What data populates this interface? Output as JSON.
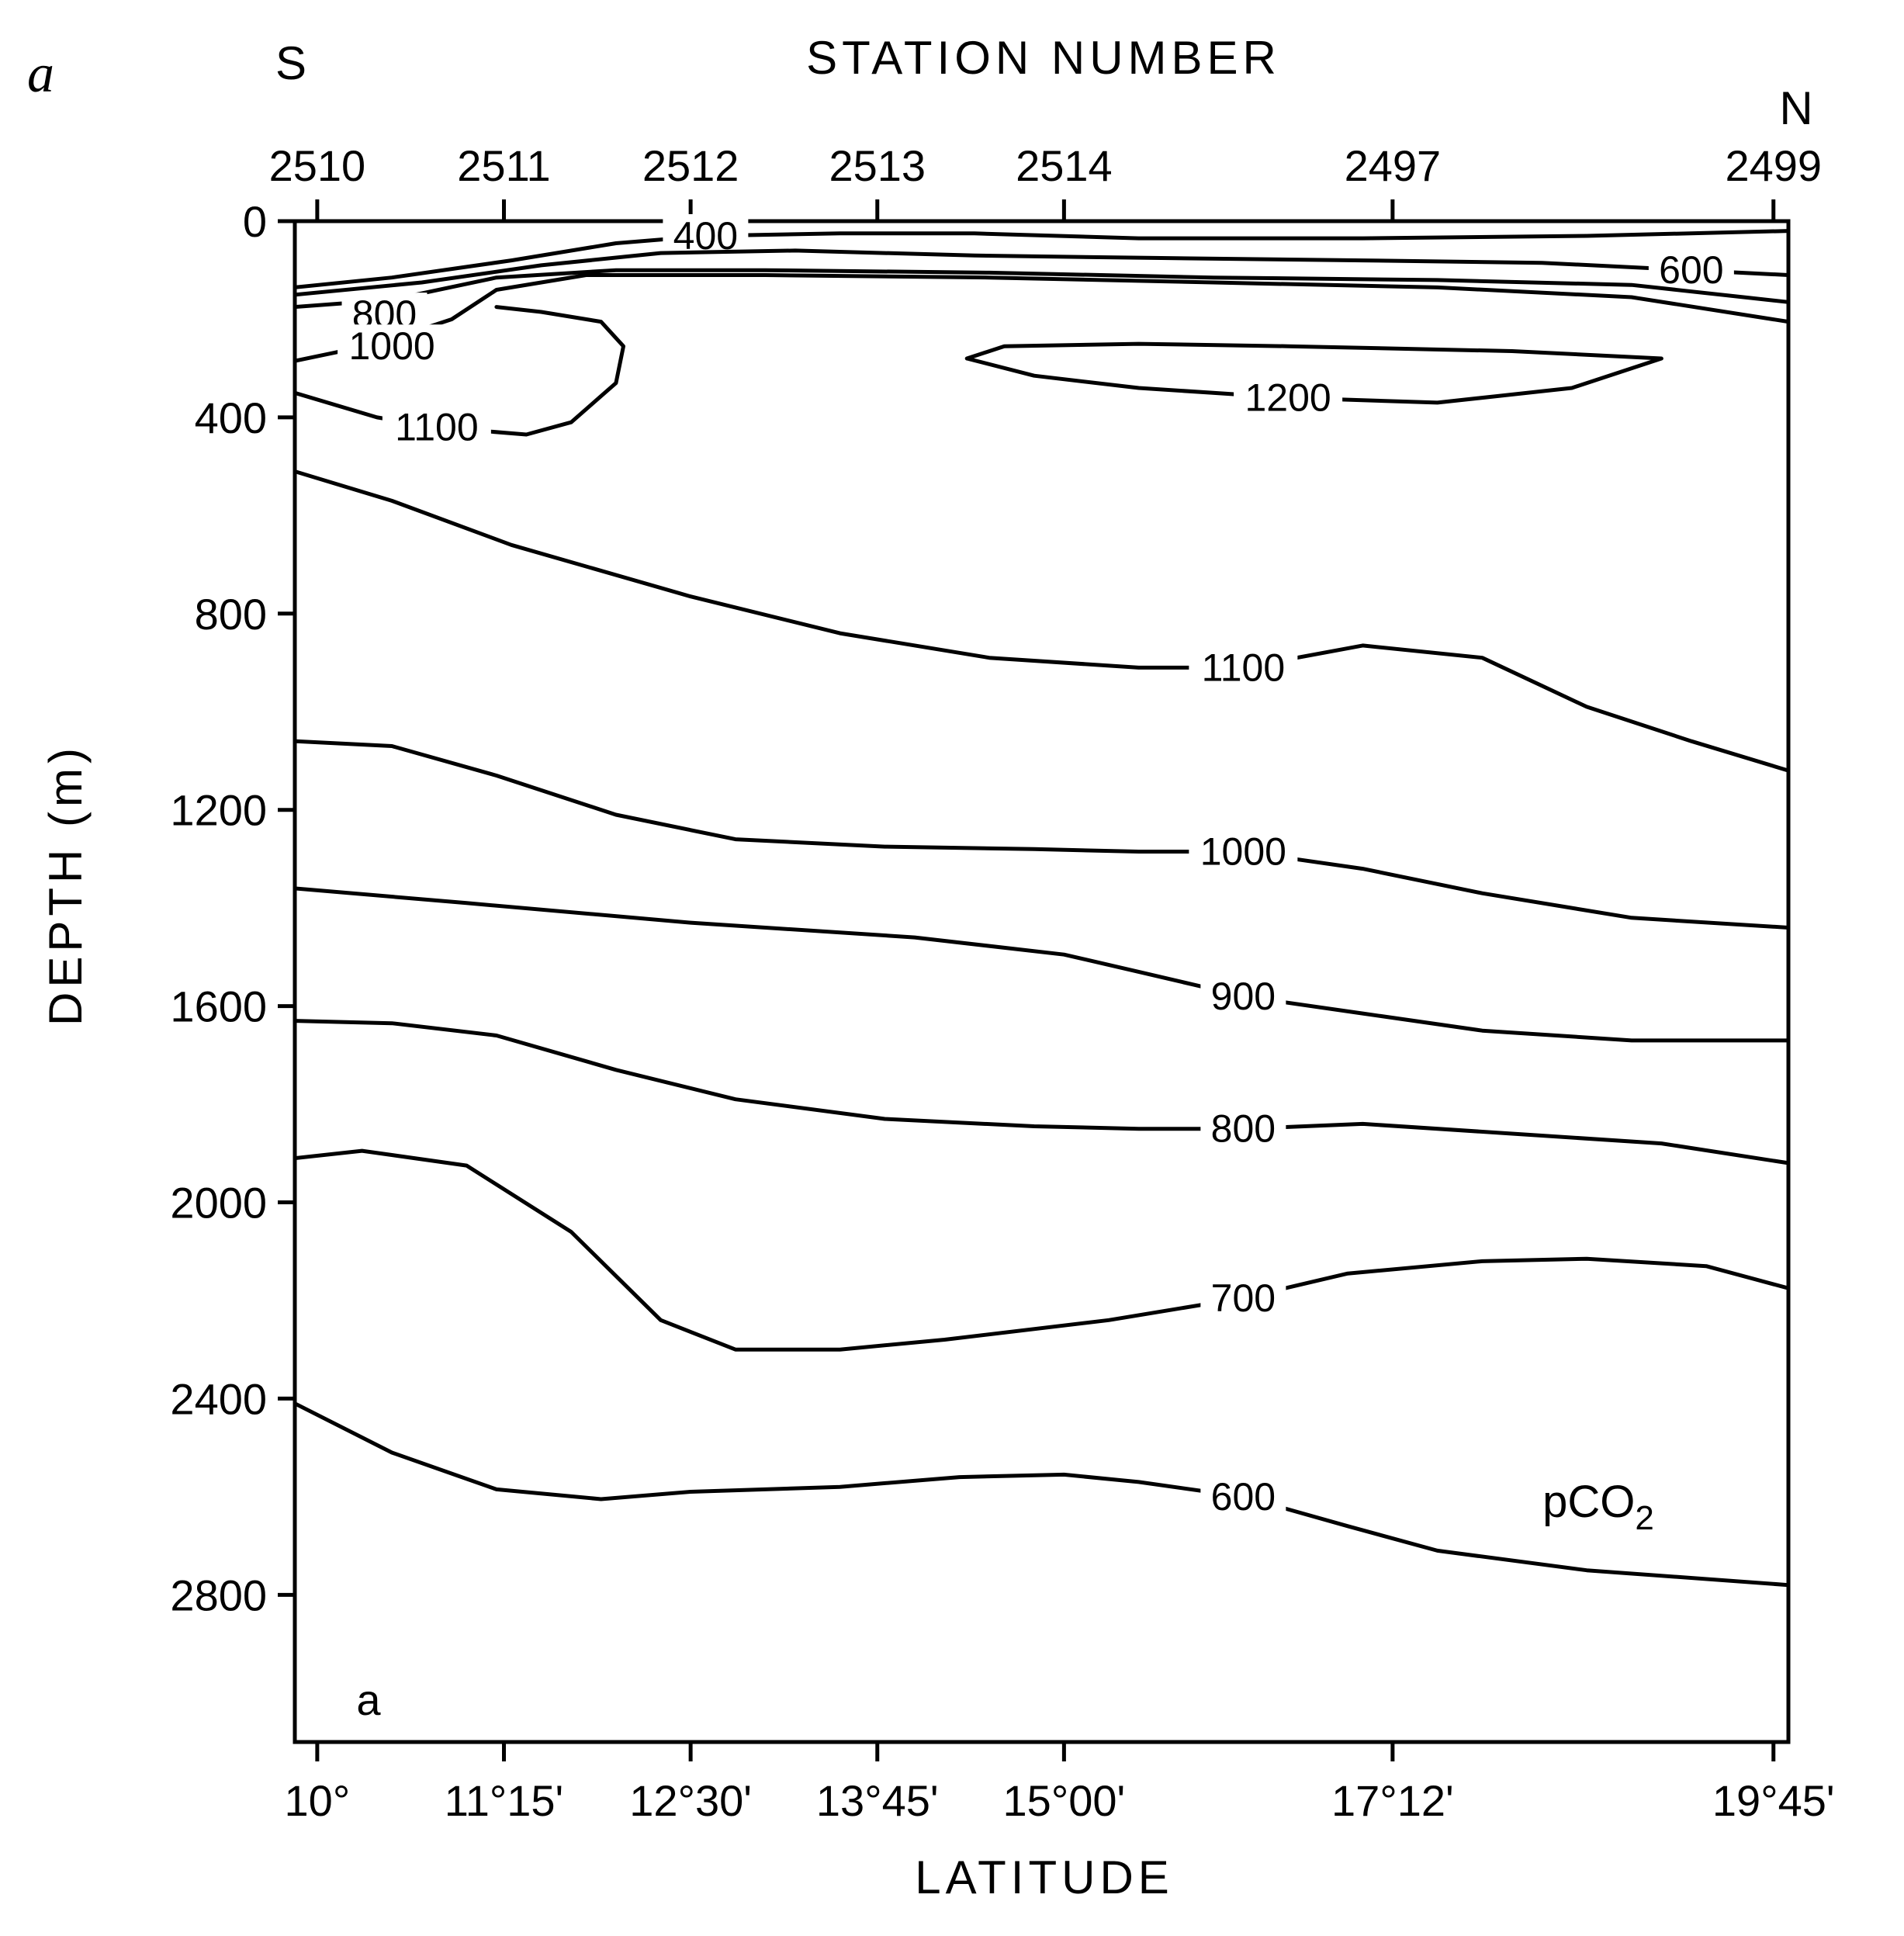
{
  "chart_data": {
    "type": "contour",
    "panel_label": "a",
    "inner_label": "a",
    "variable_label": "pCO2",
    "title": "STATION NUMBER",
    "south_label": "S",
    "north_label": "N",
    "xlabel": "LATITUDE",
    "ylabel": "DEPTH (m)",
    "ylim": [
      0,
      3100
    ],
    "y_ticks": [
      "0",
      "400",
      "800",
      "1200",
      "1600",
      "2000",
      "2400",
      "2800"
    ],
    "y_tick_values": [
      0,
      400,
      800,
      1200,
      1600,
      2000,
      2400,
      2800
    ],
    "x_ticks": [
      "10°",
      "11°15'",
      "12°30'",
      "13°45'",
      "15°00'",
      "17°12'",
      "19°45'"
    ],
    "x_tick_values": [
      10.0,
      11.25,
      12.5,
      13.75,
      15.0,
      17.2,
      19.75
    ],
    "xlim": [
      9.85,
      19.85
    ],
    "stations": [
      {
        "label": "2510",
        "lat": 10.0
      },
      {
        "label": "2511",
        "lat": 11.25
      },
      {
        "label": "2512",
        "lat": 12.5
      },
      {
        "label": "2513",
        "lat": 13.75
      },
      {
        "label": "2514",
        "lat": 15.0
      },
      {
        "label": "2497",
        "lat": 17.2
      },
      {
        "label": "2499",
        "lat": 19.75
      }
    ],
    "contours": [
      {
        "label": "400",
        "label_at": [
          12.6,
          30
        ],
        "points": [
          [
            9.85,
            135
          ],
          [
            10.5,
            115
          ],
          [
            11.3,
            80
          ],
          [
            12.0,
            45
          ],
          [
            12.6,
            30
          ],
          [
            13.5,
            25
          ],
          [
            14.4,
            25
          ],
          [
            15.5,
            35
          ],
          [
            17.0,
            35
          ],
          [
            18.5,
            30
          ],
          [
            19.85,
            20
          ]
        ]
      },
      {
        "label": "600",
        "label_at": [
          19.2,
          100
        ],
        "points": [
          [
            9.85,
            150
          ],
          [
            10.7,
            125
          ],
          [
            11.5,
            90
          ],
          [
            12.3,
            65
          ],
          [
            13.2,
            60
          ],
          [
            14.4,
            70
          ],
          [
            15.6,
            75
          ],
          [
            17.0,
            80
          ],
          [
            18.2,
            85
          ],
          [
            19.2,
            100
          ],
          [
            19.85,
            110
          ]
        ]
      },
      {
        "label": "800",
        "label_at": [
          10.45,
          190
        ],
        "points": [
          [
            9.85,
            175
          ],
          [
            10.5,
            160
          ],
          [
            11.2,
            115
          ],
          [
            12.0,
            100
          ],
          [
            13.0,
            100
          ],
          [
            14.5,
            105
          ],
          [
            16.0,
            115
          ],
          [
            17.5,
            120
          ],
          [
            18.8,
            130
          ],
          [
            19.85,
            165
          ]
        ]
      },
      {
        "label": "1000",
        "label_at": [
          10.5,
          255
        ],
        "points": [
          [
            9.85,
            285
          ],
          [
            10.4,
            250
          ],
          [
            10.9,
            200
          ],
          [
            11.2,
            140
          ],
          [
            11.8,
            110
          ],
          [
            13.0,
            110
          ],
          [
            14.5,
            115
          ],
          [
            16.0,
            125
          ],
          [
            17.5,
            135
          ],
          [
            18.8,
            155
          ],
          [
            19.85,
            205
          ]
        ]
      },
      {
        "label": "1100",
        "label_at": [
          10.8,
          420
        ],
        "points": [
          [
            9.85,
            350
          ],
          [
            10.4,
            400
          ],
          [
            10.8,
            420
          ],
          [
            11.4,
            435
          ],
          [
            11.7,
            410
          ],
          [
            12.0,
            330
          ],
          [
            12.05,
            255
          ],
          [
            11.9,
            205
          ],
          [
            11.5,
            185
          ],
          [
            11.2,
            175
          ]
        ]
      },
      {
        "label": "1200",
        "label_at": [
          16.5,
          360
        ],
        "points": [
          [
            14.35,
            280
          ],
          [
            14.6,
            255
          ],
          [
            15.5,
            250
          ],
          [
            16.5,
            255
          ],
          [
            18.0,
            265
          ],
          [
            19.0,
            280
          ],
          [
            18.4,
            340
          ],
          [
            17.5,
            370
          ],
          [
            16.5,
            360
          ],
          [
            15.5,
            340
          ],
          [
            14.8,
            315
          ],
          [
            14.35,
            280
          ]
        ]
      },
      {
        "label": "1100",
        "label_at": [
          16.2,
          910
        ],
        "points": [
          [
            9.85,
            510
          ],
          [
            10.5,
            570
          ],
          [
            11.3,
            660
          ],
          [
            12.5,
            765
          ],
          [
            13.5,
            840
          ],
          [
            14.5,
            890
          ],
          [
            15.5,
            910
          ],
          [
            16.2,
            910
          ],
          [
            17.0,
            865
          ],
          [
            17.8,
            890
          ],
          [
            18.5,
            990
          ],
          [
            19.2,
            1060
          ],
          [
            19.85,
            1120
          ]
        ]
      },
      {
        "label": "1000",
        "label_at": [
          16.2,
          1285
        ],
        "points": [
          [
            9.85,
            1060
          ],
          [
            10.5,
            1070
          ],
          [
            11.2,
            1130
          ],
          [
            12.0,
            1210
          ],
          [
            12.8,
            1260
          ],
          [
            13.8,
            1275
          ],
          [
            14.8,
            1280
          ],
          [
            15.5,
            1285
          ],
          [
            16.2,
            1285
          ],
          [
            17.0,
            1320
          ],
          [
            17.8,
            1370
          ],
          [
            18.8,
            1420
          ],
          [
            19.85,
            1440
          ]
        ]
      },
      {
        "label": "900",
        "label_at": [
          16.2,
          1580
        ],
        "points": [
          [
            9.85,
            1360
          ],
          [
            11.0,
            1390
          ],
          [
            12.5,
            1430
          ],
          [
            14.0,
            1460
          ],
          [
            15.0,
            1495
          ],
          [
            15.5,
            1530
          ],
          [
            16.2,
            1580
          ],
          [
            17.0,
            1615
          ],
          [
            17.8,
            1650
          ],
          [
            18.8,
            1670
          ],
          [
            19.85,
            1670
          ]
        ]
      },
      {
        "label": "800",
        "label_at": [
          16.2,
          1850
        ],
        "points": [
          [
            9.85,
            1630
          ],
          [
            10.5,
            1635
          ],
          [
            11.2,
            1660
          ],
          [
            12.0,
            1730
          ],
          [
            12.8,
            1790
          ],
          [
            13.8,
            1830
          ],
          [
            14.8,
            1845
          ],
          [
            15.5,
            1850
          ],
          [
            16.2,
            1850
          ],
          [
            17.0,
            1840
          ],
          [
            18.0,
            1860
          ],
          [
            19.0,
            1880
          ],
          [
            19.85,
            1920
          ]
        ]
      },
      {
        "label": "700",
        "label_at": [
          16.2,
          2195
        ],
        "points": [
          [
            9.85,
            1910
          ],
          [
            10.3,
            1895
          ],
          [
            11.0,
            1925
          ],
          [
            11.7,
            2060
          ],
          [
            12.3,
            2240
          ],
          [
            12.8,
            2300
          ],
          [
            13.5,
            2300
          ],
          [
            14.2,
            2280
          ],
          [
            15.3,
            2240
          ],
          [
            16.2,
            2195
          ],
          [
            16.9,
            2145
          ],
          [
            17.8,
            2120
          ],
          [
            18.5,
            2115
          ],
          [
            19.3,
            2130
          ],
          [
            19.85,
            2175
          ]
        ]
      },
      {
        "label": "600",
        "label_at": [
          16.2,
          2600
        ],
        "points": [
          [
            9.85,
            2410
          ],
          [
            10.5,
            2510
          ],
          [
            11.2,
            2585
          ],
          [
            11.9,
            2605
          ],
          [
            12.5,
            2590
          ],
          [
            13.5,
            2580
          ],
          [
            14.3,
            2560
          ],
          [
            15.0,
            2555
          ],
          [
            15.5,
            2570
          ],
          [
            16.2,
            2600
          ],
          [
            16.9,
            2660
          ],
          [
            17.5,
            2710
          ],
          [
            18.5,
            2750
          ],
          [
            19.85,
            2780
          ]
        ]
      }
    ]
  }
}
